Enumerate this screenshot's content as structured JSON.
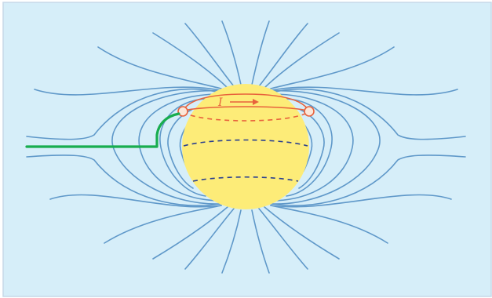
{
  "diagram": {
    "current_label": "I",
    "colors": {
      "background": "#d6eef9",
      "border": "#c7d9e8",
      "sphere": "#fdec78",
      "field_lines": "#5f98c9",
      "current_loop": "#e8623c",
      "latitude_lines": "#2a3f8f",
      "wire": "#18ad4f"
    }
  }
}
